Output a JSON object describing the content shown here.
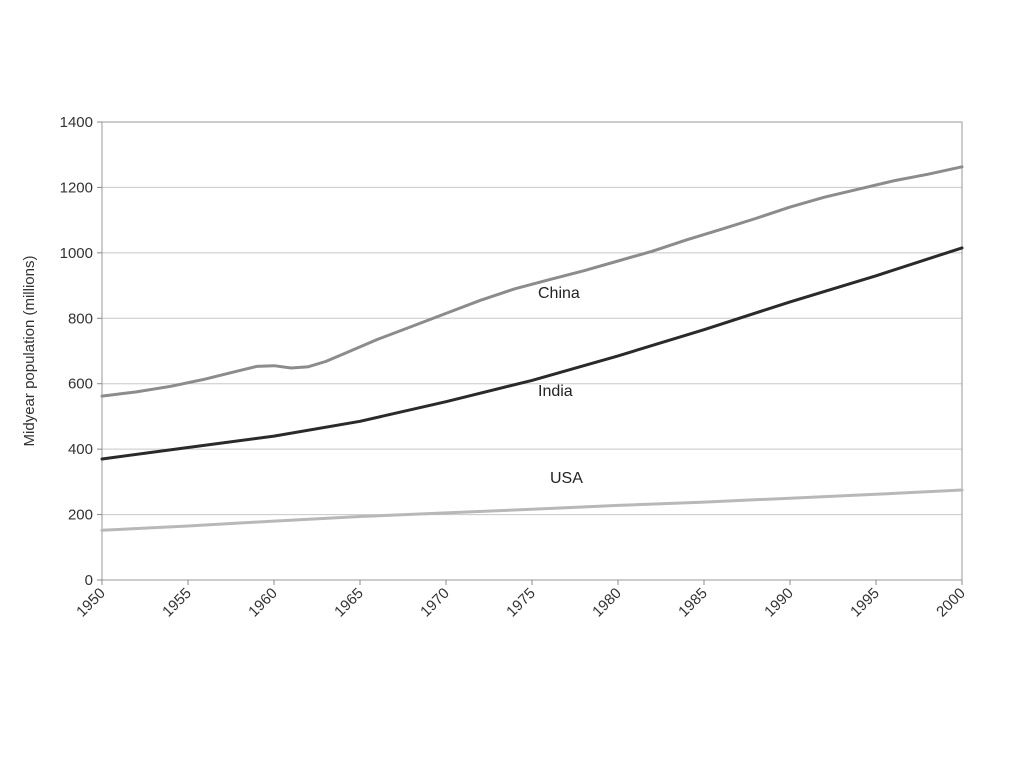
{
  "chart_data": {
    "type": "line",
    "title": "",
    "xlabel": "",
    "ylabel": "Midyear population (millions)",
    "xlim": [
      1950,
      2000
    ],
    "ylim": [
      0,
      1400
    ],
    "x_ticks": [
      "1950",
      "1955",
      "1960",
      "1965",
      "1970",
      "1975",
      "1980",
      "1985",
      "1990",
      "1995",
      "2000"
    ],
    "y_ticks": [
      "0",
      "200",
      "400",
      "600",
      "800",
      "1000",
      "1200",
      "1400"
    ],
    "grid": true,
    "legend": "inline labels",
    "series": [
      {
        "name": "China",
        "color": "#8c8c8c",
        "x": [
          1950,
          1952,
          1954,
          1956,
          1958,
          1959,
          1960,
          1961,
          1962,
          1963,
          1964,
          1966,
          1968,
          1970,
          1972,
          1974,
          1976,
          1978,
          1980,
          1982,
          1984,
          1986,
          1988,
          1990,
          1992,
          1994,
          1996,
          1998,
          2000
        ],
        "y": [
          562,
          575,
          592,
          614,
          640,
          653,
          655,
          648,
          652,
          668,
          690,
          735,
          775,
          815,
          855,
          890,
          918,
          945,
          975,
          1005,
          1040,
          1072,
          1105,
          1140,
          1170,
          1195,
          1220,
          1240,
          1263
        ]
      },
      {
        "name": "India",
        "color": "#2a2a2a",
        "x": [
          1950,
          1955,
          1960,
          1965,
          1970,
          1975,
          1980,
          1985,
          1990,
          1995,
          2000
        ],
        "y": [
          370,
          405,
          440,
          485,
          545,
          610,
          685,
          765,
          850,
          930,
          1015
        ]
      },
      {
        "name": "USA",
        "color": "#b8b8b8",
        "x": [
          1950,
          1955,
          1960,
          1965,
          1970,
          1975,
          1980,
          1985,
          1990,
          1995,
          2000
        ],
        "y": [
          152,
          165,
          180,
          194,
          205,
          216,
          228,
          238,
          250,
          262,
          275
        ]
      }
    ]
  }
}
